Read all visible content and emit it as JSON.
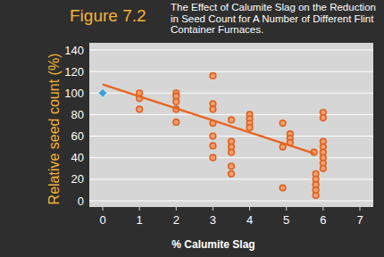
{
  "chart_data": {
    "type": "scatter",
    "title": "Figure 7.2",
    "subtitle": "The Effect of Calumite Slag on the Reduction in Seed Count for A Number of Different Flint Container Furnaces.",
    "x_label": "% Calumite Slag",
    "y_label": "Relative seed count (%)",
    "xlim": [
      0,
      7
    ],
    "ylim": [
      0,
      140
    ],
    "xticks": [
      0,
      1,
      2,
      3,
      4,
      5,
      6,
      7
    ],
    "yticks": [
      0,
      20,
      40,
      60,
      80,
      100,
      120,
      140
    ],
    "grid": true,
    "series": [
      {
        "color": "#e0601c",
        "marker": "circle",
        "x": [
          1,
          1,
          1,
          2,
          2,
          2,
          2,
          2,
          3,
          3,
          3,
          3,
          3,
          3,
          3,
          3.5,
          3.5,
          3.5,
          3.5,
          3.5,
          3.5,
          4,
          4,
          4,
          4,
          4.9,
          4.9,
          4.9,
          5.1,
          5.1,
          5.1,
          5.75,
          5.8,
          5.8,
          5.8,
          5.8,
          5.8,
          6,
          6,
          6,
          6,
          6,
          6,
          6,
          6
        ],
        "values": [
          100,
          95,
          85,
          100,
          97,
          92,
          85,
          73,
          116,
          90,
          85,
          72,
          60,
          51,
          40,
          75,
          55,
          50,
          45,
          32,
          25,
          80,
          76,
          72,
          68,
          72,
          50,
          12,
          62,
          58,
          54,
          45,
          25,
          20,
          15,
          10,
          5,
          82,
          77,
          55,
          50,
          45,
          40,
          35,
          30
        ]
      },
      {
        "color": "#3aa0d8",
        "marker": "diamond",
        "x": [
          0
        ],
        "values": [
          100
        ]
      },
      {
        "type": "line",
        "color": "#e8641e",
        "x": [
          0,
          5.75
        ],
        "values": [
          108,
          44
        ]
      }
    ]
  }
}
